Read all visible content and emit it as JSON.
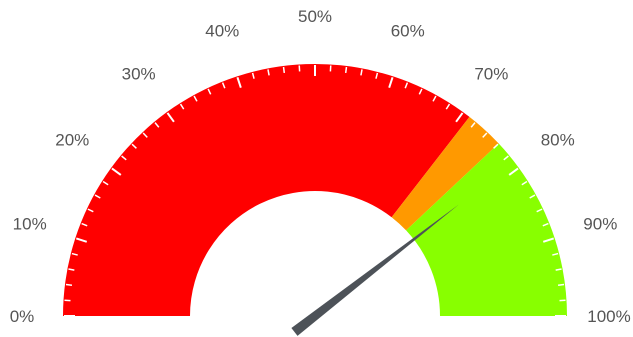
{
  "chart_data": {
    "type": "gauge",
    "min": 0,
    "max": 100,
    "unit": "%",
    "value": 79,
    "bands": [
      {
        "from": 0,
        "to": 71,
        "color": "#ff0000"
      },
      {
        "from": 71,
        "to": 76,
        "color": "#ff9900"
      },
      {
        "from": 76,
        "to": 100,
        "color": "#88ff00"
      }
    ],
    "tick_labels": [
      "0%",
      "10%",
      "20%",
      "30%",
      "40%",
      "50%",
      "60%",
      "70%",
      "80%",
      "90%",
      "100%"
    ],
    "minor_ticks_per_major": 5,
    "needle_color": "#4d5258",
    "tick_color": "#ffffff"
  }
}
